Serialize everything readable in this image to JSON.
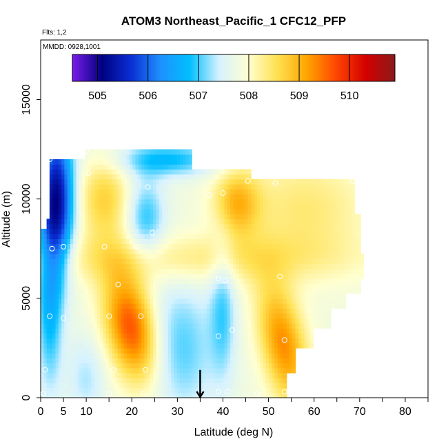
{
  "chart_data": {
    "type": "heatmap",
    "title": "ATOM3 Northeast_Pacific_1 CFC12_PFP",
    "annotations": [
      "Flts: 1,2",
      "MMDD: 0928,1001"
    ],
    "xlabel": "Latitude (deg N)",
    "ylabel": "Altitude (m)",
    "xlim": [
      0,
      85
    ],
    "ylim": [
      0,
      18000
    ],
    "x_ticks": [
      0,
      5,
      10,
      20,
      30,
      40,
      50,
      60,
      70,
      80
    ],
    "x_ticks_minor": [
      0,
      5,
      10,
      15,
      20,
      25,
      30,
      35,
      40,
      45,
      50,
      55,
      60,
      65,
      70,
      75,
      80,
      85
    ],
    "y_ticks": [
      0,
      5000,
      10000,
      15000
    ],
    "colorbar": {
      "range": [
        504.5,
        510.9
      ],
      "ticks": [
        505,
        506,
        507,
        508,
        509,
        510
      ],
      "colors": [
        "#7a1be8",
        "#00007f",
        "#0a2fd4",
        "#1e90ff",
        "#00bfff",
        "#d6f2ff",
        "#ffffd0",
        "#ffe050",
        "#ffa500",
        "#ff4500",
        "#d40000",
        "#8b1a1a"
      ]
    },
    "arrow_marker": {
      "x": 35,
      "y_top": 700,
      "y_bottom": 0
    },
    "points": [
      {
        "x": 0.5,
        "y": 200
      },
      {
        "x": 1,
        "y": 1400
      },
      {
        "x": 2,
        "y": 4100
      },
      {
        "x": 5,
        "y": 4000
      },
      {
        "x": 2.5,
        "y": 7500
      },
      {
        "x": 5,
        "y": 7600
      },
      {
        "x": 2,
        "y": 12000
      },
      {
        "x": 10,
        "y": 12400
      },
      {
        "x": 10.5,
        "y": 11300
      },
      {
        "x": 14,
        "y": 7600
      },
      {
        "x": 15,
        "y": 4100
      },
      {
        "x": 17,
        "y": 5700
      },
      {
        "x": 16,
        "y": 1400
      },
      {
        "x": 15,
        "y": 200
      },
      {
        "x": 21,
        "y": 7600
      },
      {
        "x": 22,
        "y": 4100
      },
      {
        "x": 23,
        "y": 1400
      },
      {
        "x": 22.5,
        "y": 200
      },
      {
        "x": 23.5,
        "y": 10600
      },
      {
        "x": 24.5,
        "y": 8300
      },
      {
        "x": 37,
        "y": 10200
      },
      {
        "x": 40,
        "y": 10300
      },
      {
        "x": 39,
        "y": 6000
      },
      {
        "x": 40.5,
        "y": 5900
      },
      {
        "x": 39,
        "y": 3100
      },
      {
        "x": 42,
        "y": 3400
      },
      {
        "x": 39,
        "y": 300
      },
      {
        "x": 41,
        "y": 300
      },
      {
        "x": 45.5,
        "y": 10900
      },
      {
        "x": 51.5,
        "y": 10800
      },
      {
        "x": 52.5,
        "y": 6100
      },
      {
        "x": 53.5,
        "y": 2900
      },
      {
        "x": 47.5,
        "y": 200
      },
      {
        "x": 53.5,
        "y": 300
      },
      {
        "x": 68.5,
        "y": 10900
      }
    ]
  }
}
